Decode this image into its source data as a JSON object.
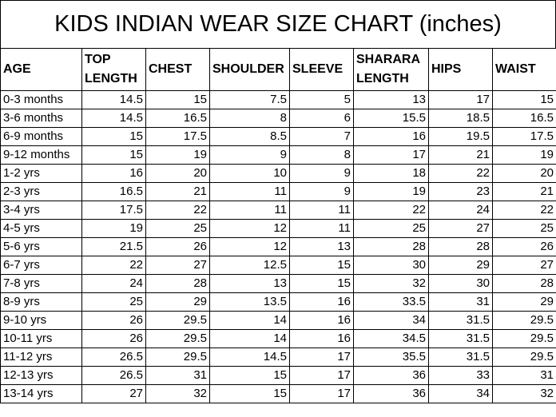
{
  "title": "KIDS INDIAN WEAR SIZE CHART (inches)",
  "table": {
    "headers": [
      "AGE",
      "TOP LENGTH",
      "CHEST",
      "SHOULDER",
      "SLEEVE",
      "SHARARA LENGTH",
      "HIPS",
      "WAIST"
    ],
    "rows": [
      [
        "0-3 months",
        14.5,
        15,
        7.5,
        5,
        13,
        17,
        15
      ],
      [
        "3-6 months",
        14.5,
        16.5,
        8,
        6,
        15.5,
        18.5,
        16.5
      ],
      [
        "6-9 months",
        15,
        17.5,
        8.5,
        7,
        16,
        19.5,
        17.5
      ],
      [
        "9-12 months",
        15,
        19,
        9,
        8,
        17,
        21,
        19
      ],
      [
        "1-2 yrs",
        16,
        20,
        10,
        9,
        18,
        22,
        20
      ],
      [
        "2-3 yrs",
        16.5,
        21,
        11,
        9,
        19,
        23,
        21
      ],
      [
        "3-4 yrs",
        17.5,
        22,
        11,
        11,
        22,
        24,
        22
      ],
      [
        "4-5 yrs",
        19,
        25,
        12,
        11,
        25,
        27,
        25
      ],
      [
        "5-6 yrs",
        21.5,
        26,
        12,
        13,
        28,
        28,
        26
      ],
      [
        "6-7 yrs",
        22,
        27,
        12.5,
        15,
        30,
        29,
        27
      ],
      [
        "7-8 yrs",
        24,
        28,
        13,
        15,
        32,
        30,
        28
      ],
      [
        "8-9 yrs",
        25,
        29,
        13.5,
        16,
        33.5,
        31,
        29
      ],
      [
        "9-10 yrs",
        26,
        29.5,
        14,
        16,
        34,
        31.5,
        29.5
      ],
      [
        "10-11 yrs",
        26,
        29.5,
        14,
        16,
        34.5,
        31.5,
        29.5
      ],
      [
        "11-12 yrs",
        26.5,
        29.5,
        14.5,
        17,
        35.5,
        31.5,
        29.5
      ],
      [
        "12-13 yrs",
        26.5,
        31,
        15,
        17,
        36,
        33,
        31
      ],
      [
        "13-14 yrs",
        27,
        32,
        15,
        17,
        36,
        34,
        32
      ]
    ]
  }
}
